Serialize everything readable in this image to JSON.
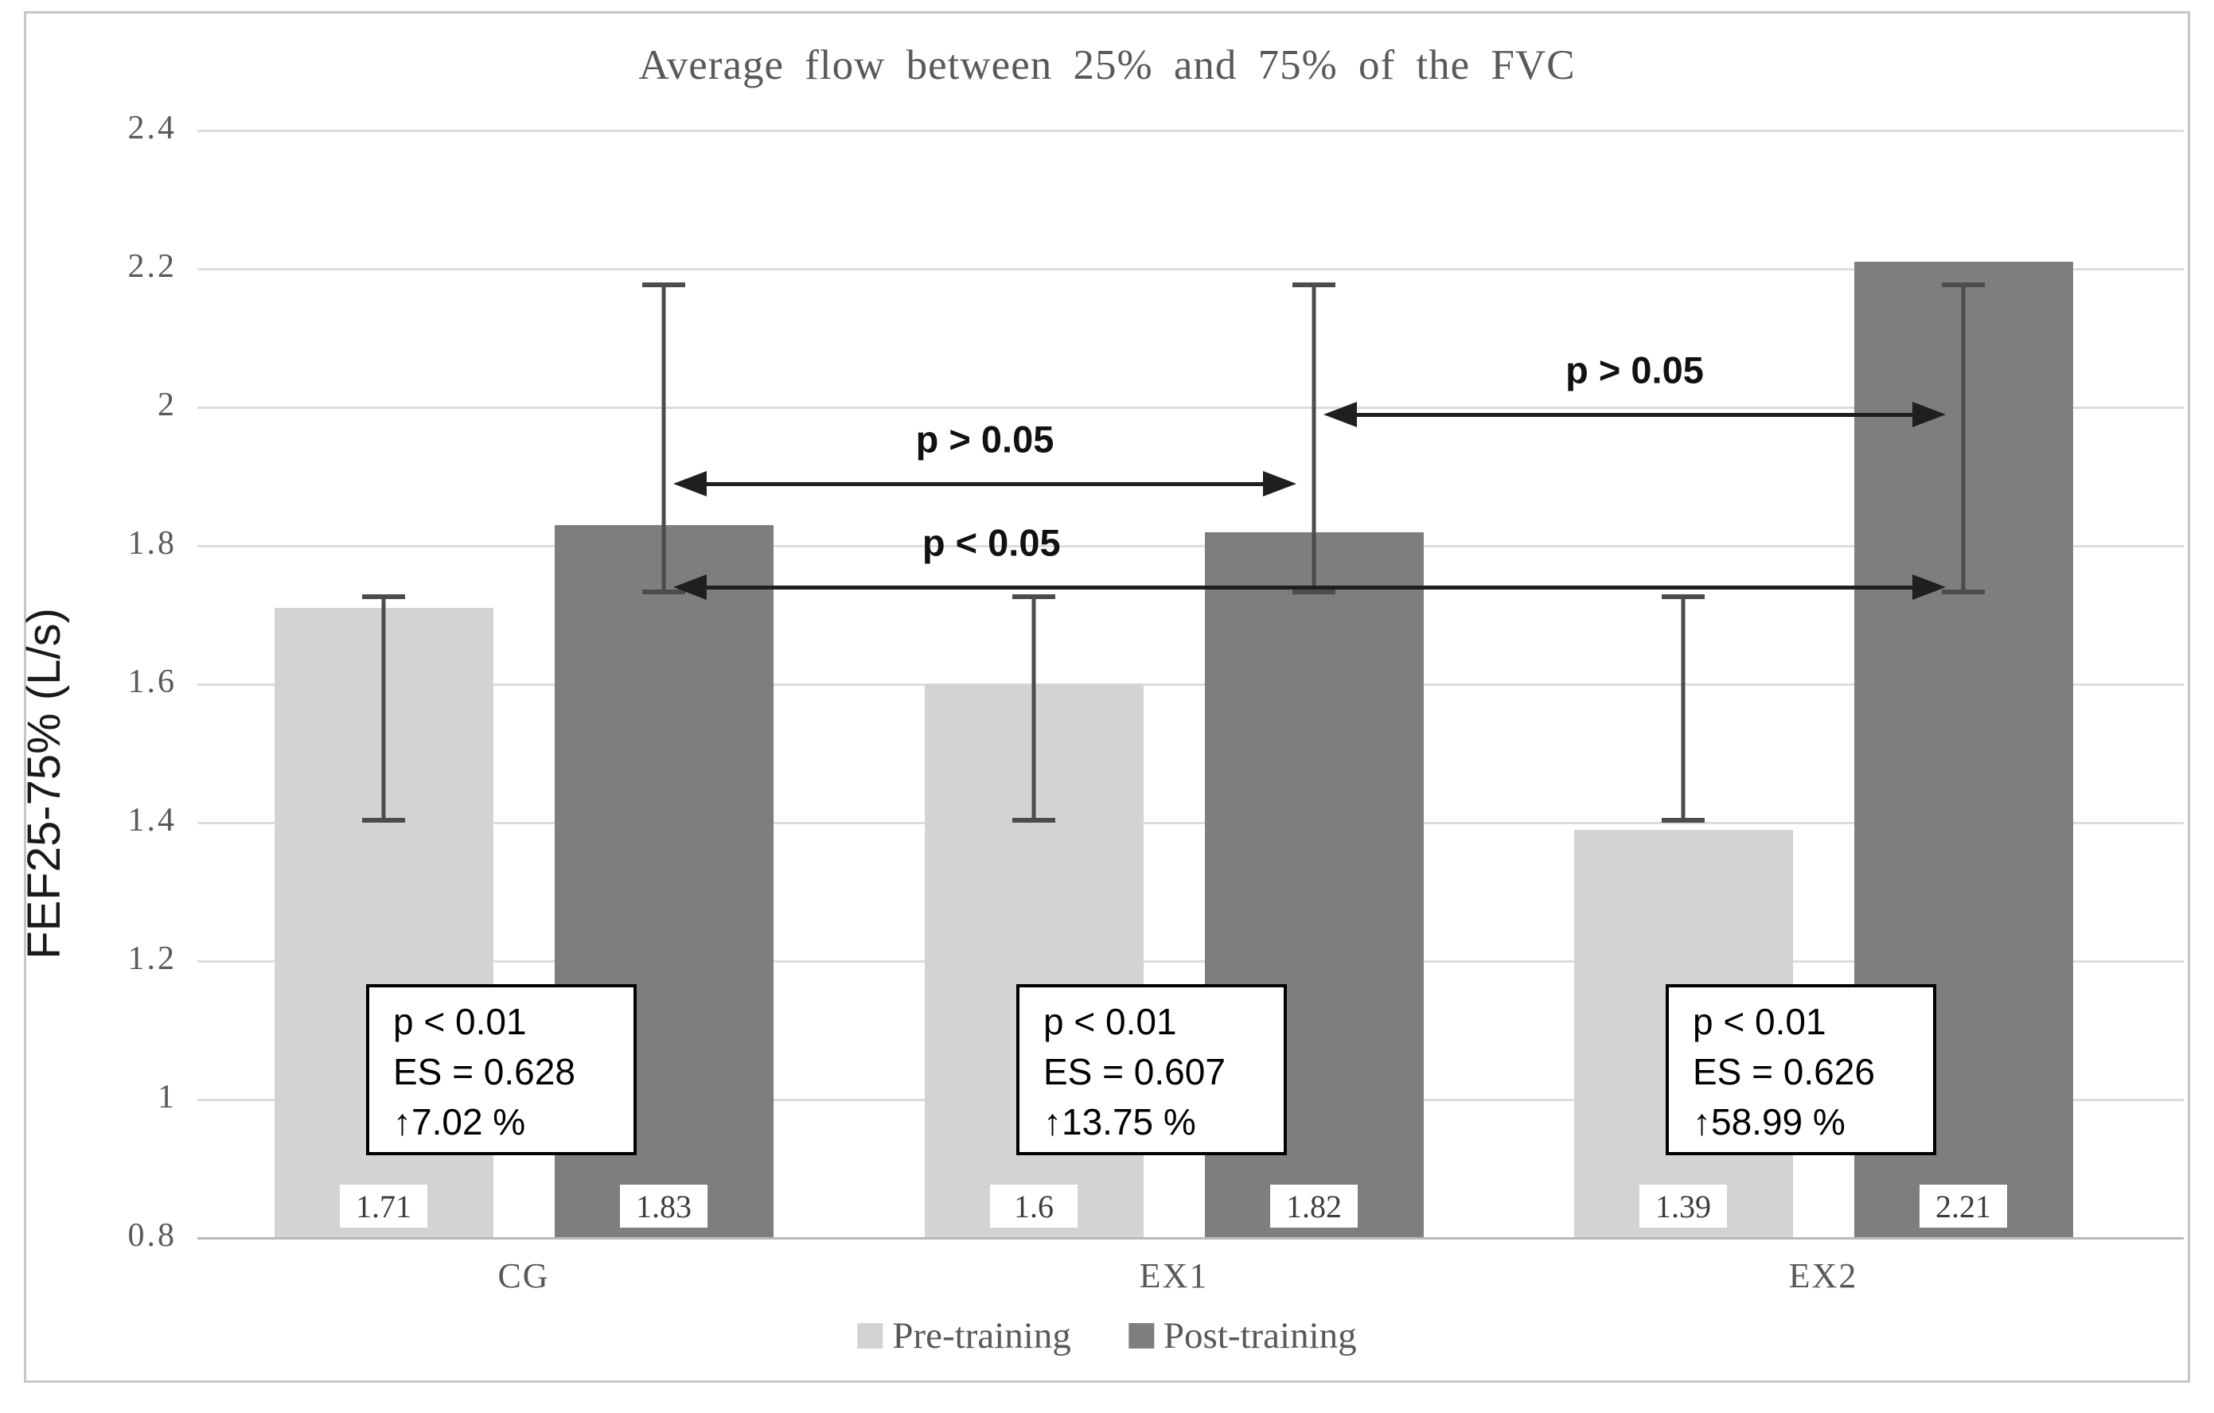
{
  "figure_title": "Average flow between 25% and 75% of the FVC",
  "y_axis_title": "FEF25-75% (L/s)",
  "legend": {
    "items": [
      {
        "label": "Pre-training",
        "color": "#d3d3d3"
      },
      {
        "label": "Post-training",
        "color": "#7e7e7e"
      }
    ]
  },
  "chart_data": {
    "type": "bar",
    "title": "Average flow between 25% and 75% of the FVC",
    "xlabel": "",
    "ylabel": "FEF25-75% (L/s)",
    "categories": [
      "CG",
      "EX1",
      "EX2"
    ],
    "series": [
      {
        "name": "Pre-training",
        "color": "#d3d3d3",
        "values": [
          1.71,
          1.6,
          1.39
        ],
        "value_labels": [
          "1.71",
          "1.6",
          "1.39"
        ],
        "error_bar_range": [
          1.4,
          1.73
        ]
      },
      {
        "name": "Post-training",
        "color": "#7e7e7e",
        "values": [
          1.83,
          1.82,
          2.21
        ],
        "value_labels": [
          "1.83",
          "1.82",
          "2.21"
        ],
        "error_bar_range": [
          1.73,
          2.18
        ]
      }
    ],
    "ylim": [
      0.8,
      2.4
    ],
    "ytick_labels": [
      "0.8",
      "1",
      "1.2",
      "1.4",
      "1.6",
      "1.8",
      "2",
      "2.2",
      "2.4"
    ],
    "grid": true,
    "legend_position": "bottom",
    "within_group_annotations": [
      {
        "category": "CG",
        "lines": [
          "p < 0.01",
          "ES = 0.628",
          "↑7.02 %"
        ]
      },
      {
        "category": "EX1",
        "lines": [
          "p < 0.01",
          "ES = 0.607",
          "↑13.75 %"
        ]
      },
      {
        "category": "EX2",
        "lines": [
          "p < 0.01",
          "ES = 0.626",
          "↑58.99 %"
        ]
      }
    ],
    "between_group_arrows": [
      {
        "label": "p > 0.05",
        "from": "CG",
        "to": "EX1",
        "y_value": 1.89
      },
      {
        "label": "p > 0.05",
        "from": "EX1",
        "to": "EX2",
        "y_value": 1.99
      },
      {
        "label": "p < 0.05",
        "from": "CG",
        "to": "EX2",
        "y_value": 1.74
      }
    ]
  }
}
